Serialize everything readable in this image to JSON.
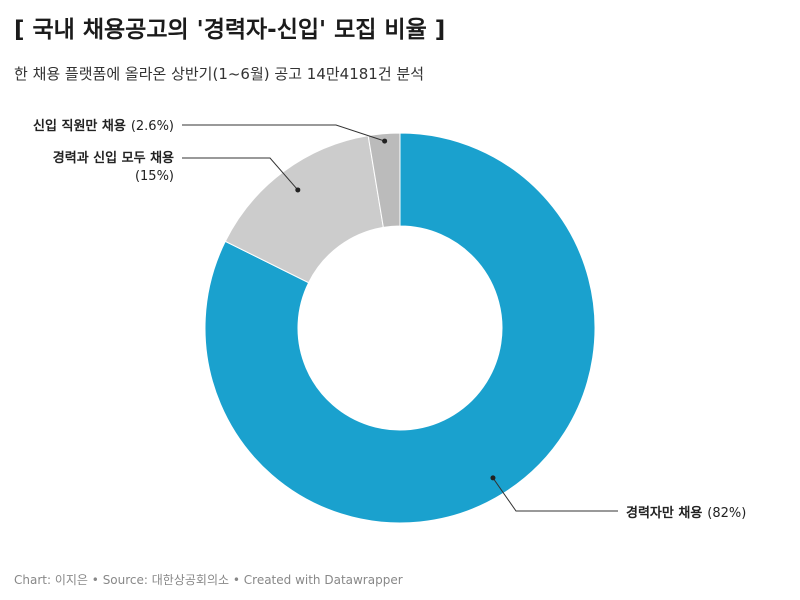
{
  "header": {
    "title": "[ 국내 채용공고의 '경력자-신입' 모집 비율 ]",
    "subtitle": "한 채용 플랫폼에 올라온 상반기(1~6월) 공고 14만4181건 분석"
  },
  "footer": {
    "chart_credit": "Chart: 이지은",
    "separator": " • ",
    "source": "Source: 대한상공회의소",
    "tool": "Created with Datawrapper"
  },
  "chart_data": {
    "type": "pie",
    "donut": true,
    "slices": [
      {
        "label": "경력자만 채용",
        "value": 82,
        "value_label": "(82%)",
        "color": "#1aa1ce"
      },
      {
        "label": "경력과 신입 모두 채용",
        "value": 15,
        "value_label": "(15%)",
        "color": "#cccccc"
      },
      {
        "label": "신입 직원만 채용",
        "value": 2.6,
        "value_label": "(2.6%)",
        "color": "#bbbbbb"
      }
    ]
  }
}
